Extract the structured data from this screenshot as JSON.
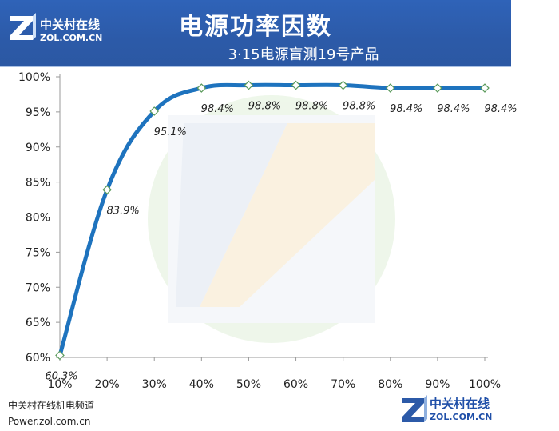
{
  "header": {
    "brand_cn": "中关村在线",
    "brand_en": "ZOL.COM.CN",
    "title": "电源功率因数",
    "subtitle": "3·15电源盲测19号产品"
  },
  "footer": {
    "line1": "中关村在线机电频道",
    "line2": "Power.zol.com.cn",
    "brand_cn": "中关村在线",
    "brand_en": "ZOL.COM.CN"
  },
  "colors": {
    "line": "#1e73be",
    "header_bg": "#2c5aa8"
  },
  "chart_data": {
    "type": "line",
    "title": "",
    "xlabel": "",
    "ylabel": "",
    "categories": [
      "10%",
      "20%",
      "30%",
      "40%",
      "50%",
      "60%",
      "70%",
      "80%",
      "90%",
      "100%"
    ],
    "values": [
      60.3,
      83.9,
      95.1,
      98.4,
      98.8,
      98.8,
      98.8,
      98.4,
      98.4,
      98.4
    ],
    "labels": [
      "60.3%",
      "83.9%",
      "95.1%",
      "98.4%",
      "98.8%",
      "98.8%",
      "98.8%",
      "98.4%",
      "98.4%",
      "98.4%"
    ],
    "y_ticks": [
      "60%",
      "65%",
      "70%",
      "75%",
      "80%",
      "85%",
      "90%",
      "95%",
      "100%"
    ],
    "ylim": [
      60,
      100
    ],
    "grid": false,
    "legend": "none"
  }
}
